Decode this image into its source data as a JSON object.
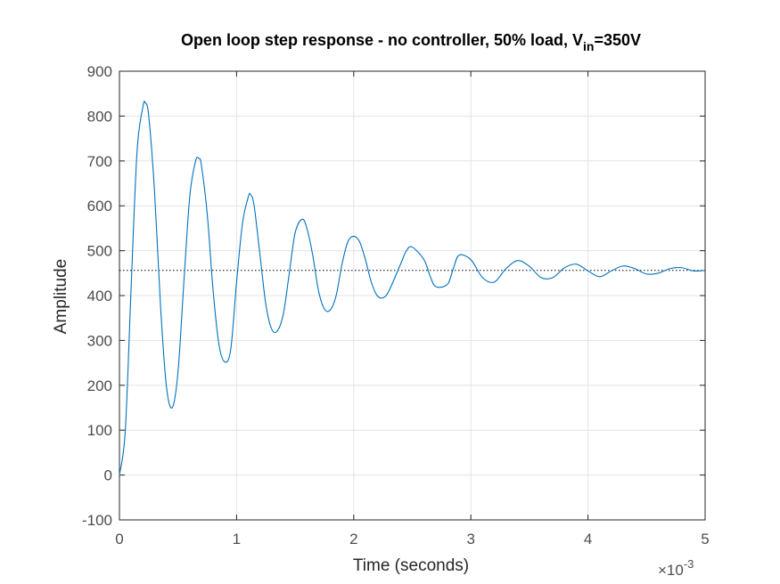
{
  "chart_data": {
    "type": "line",
    "title": {
      "main": "Open loop step response - no controller, 50% load, V",
      "subscript": "in",
      "suffix": "=350V"
    },
    "xlabel": "Time (seconds)",
    "ylabel": "Amplitude",
    "x_exponent": {
      "prefix": "×10",
      "superscript": "-3"
    },
    "xlim": [
      0,
      0.005
    ],
    "ylim": [
      -100,
      900
    ],
    "x_ticks": [
      0,
      0.001,
      0.002,
      0.003,
      0.004,
      0.005
    ],
    "x_tick_labels": [
      "0",
      "1",
      "2",
      "3",
      "4",
      "5"
    ],
    "y_ticks": [
      -100,
      0,
      100,
      200,
      300,
      400,
      500,
      600,
      700,
      800,
      900
    ],
    "y_tick_labels": [
      "-100",
      "0",
      "100",
      "200",
      "300",
      "400",
      "500",
      "600",
      "700",
      "800",
      "900"
    ],
    "grid": true,
    "steady_state": 456,
    "series": [
      {
        "color": "#0072bd",
        "x": [
          0,
          5e-05,
          0.0001,
          0.00015,
          0.0002,
          0.00022,
          0.00025,
          0.0003,
          0.00035,
          0.0004,
          0.00045,
          0.0005,
          0.00055,
          0.0006,
          0.00065,
          0.00068,
          0.0007,
          0.00075,
          0.0008,
          0.00085,
          0.0009,
          0.00095,
          0.001,
          0.00105,
          0.0011,
          0.00112,
          0.00115,
          0.0012,
          0.00125,
          0.0013,
          0.00135,
          0.0014,
          0.00145,
          0.0015,
          0.00156,
          0.0016,
          0.00165,
          0.0017,
          0.00175,
          0.0018,
          0.00185,
          0.0019,
          0.00195,
          0.002,
          0.00205,
          0.0021,
          0.00215,
          0.0022,
          0.00225,
          0.0023,
          0.0024,
          0.00245,
          0.0025,
          0.0026,
          0.00265,
          0.0027,
          0.0028,
          0.00285,
          0.0029,
          0.003,
          0.0031,
          0.0032,
          0.0033,
          0.0034,
          0.0035,
          0.0036,
          0.0037,
          0.0038,
          0.0039,
          0.004,
          0.0041,
          0.0042,
          0.0043,
          0.0044,
          0.0045,
          0.0046,
          0.0047,
          0.0048,
          0.0049,
          0.005
        ],
        "y": [
          0,
          100,
          420,
          720,
          820,
          830,
          800,
          630,
          380,
          200,
          150,
          230,
          430,
          620,
          700,
          705,
          690,
          580,
          410,
          290,
          252,
          280,
          430,
          560,
          620,
          625,
          600,
          490,
          380,
          325,
          322,
          360,
          450,
          540,
          570,
          550,
          490,
          410,
          370,
          368,
          400,
          470,
          520,
          532,
          520,
          480,
          430,
          400,
          395,
          410,
          470,
          500,
          508,
          480,
          445,
          420,
          425,
          460,
          490,
          480,
          440,
          430,
          460,
          478,
          465,
          440,
          440,
          462,
          470,
          455,
          442,
          455,
          466,
          460,
          448,
          450,
          460,
          462,
          455,
          456
        ]
      }
    ]
  }
}
